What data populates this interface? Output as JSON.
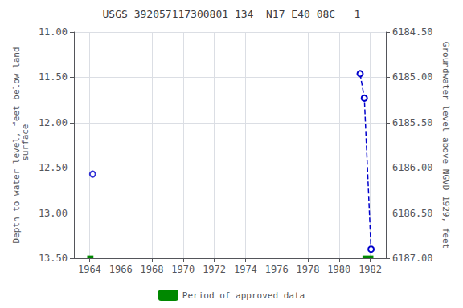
{
  "chart_data": {
    "type": "line",
    "title": "USGS 392057117300801 134  N17 E40 08C   1",
    "ylabel": "Depth to water level, feet below land\n surface",
    "y2label": "Groundwater level above NGVD 1929, feet",
    "xlim": [
      1963.0,
      1983.0
    ],
    "xticks": [
      1964,
      1966,
      1968,
      1970,
      1972,
      1974,
      1976,
      1978,
      1980,
      1982
    ],
    "ylim": [
      13.5,
      11.0
    ],
    "yticks": [
      {
        "value": 11.0,
        "label": "11.00"
      },
      {
        "value": 11.5,
        "label": "11.50"
      },
      {
        "value": 12.0,
        "label": "12.00"
      },
      {
        "value": 12.5,
        "label": "12.50"
      },
      {
        "value": 13.0,
        "label": "13.00"
      },
      {
        "value": 13.5,
        "label": "13.50"
      }
    ],
    "y2lim": [
      6187.0,
      6184.5
    ],
    "y2ticks": [
      {
        "value": 6187.0,
        "label": "6187.00"
      },
      {
        "value": 6186.5,
        "label": "6186.50"
      },
      {
        "value": 6186.0,
        "label": "6186.00"
      },
      {
        "value": 6185.5,
        "label": "6185.50"
      },
      {
        "value": 6185.0,
        "label": "6185.00"
      },
      {
        "value": 6184.5,
        "label": "6184.50"
      }
    ],
    "grid": true,
    "legend": "bottom",
    "series": [
      {
        "type": "scatter",
        "color": "#0000cc",
        "marker": "circle_open",
        "x": [
          1964.2
        ],
        "values": [
          12.57
        ]
      },
      {
        "type": "line",
        "color": "#0000cc",
        "marker": "circle_open",
        "line_style": "dashed",
        "x": [
          1981.35,
          1981.62,
          1982.05
        ],
        "values": [
          11.46,
          11.73,
          13.4
        ]
      },
      {
        "name": "Period of approved data",
        "type": "span",
        "color": "#008800",
        "segments": [
          [
            1963.85,
            1964.25
          ],
          [
            1981.5,
            1982.2
          ]
        ],
        "y_range": [
          13.47,
          13.5
        ]
      }
    ]
  }
}
